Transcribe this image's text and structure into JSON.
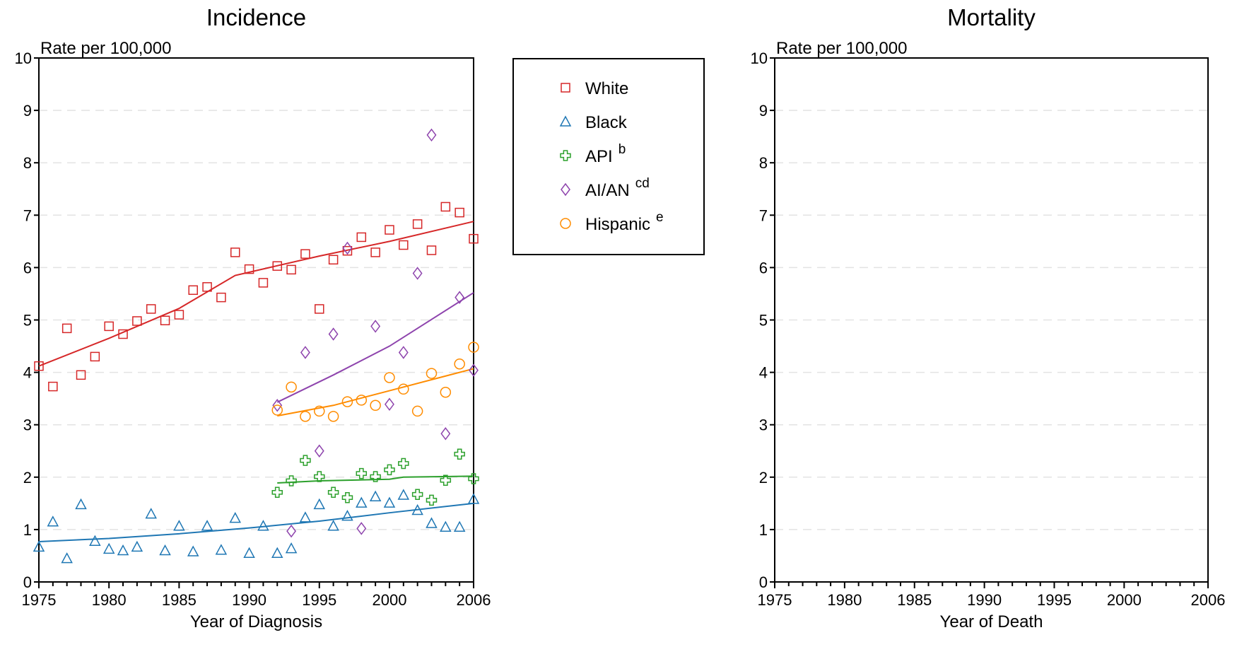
{
  "chart_data": [
    {
      "type": "scatter",
      "title": "Incidence",
      "ylabel": "Rate per 100,000",
      "xlabel": "Year of Diagnosis",
      "xlim": [
        1975,
        2006
      ],
      "ylim": [
        0,
        10
      ],
      "x_ticks": [
        1975,
        1980,
        1985,
        1990,
        1995,
        2000,
        2006
      ],
      "y_ticks": [
        0,
        1,
        2,
        3,
        4,
        5,
        6,
        7,
        8,
        9,
        10
      ],
      "grid": "horizontal dashed",
      "legend_position": "right",
      "series": [
        {
          "name": "White",
          "sup": "",
          "marker": "square",
          "color": "#d62728",
          "points": [
            [
              1975,
              4.12
            ],
            [
              1976,
              3.73
            ],
            [
              1977,
              4.84
            ],
            [
              1978,
              3.95
            ],
            [
              1979,
              4.3
            ],
            [
              1980,
              4.88
            ],
            [
              1981,
              4.73
            ],
            [
              1982,
              4.98
            ],
            [
              1983,
              5.21
            ],
            [
              1984,
              4.99
            ],
            [
              1985,
              5.1
            ],
            [
              1986,
              5.57
            ],
            [
              1987,
              5.63
            ],
            [
              1988,
              5.43
            ],
            [
              1989,
              6.29
            ],
            [
              1990,
              5.97
            ],
            [
              1991,
              5.71
            ],
            [
              1992,
              6.03
            ],
            [
              1993,
              5.96
            ],
            [
              1994,
              6.26
            ],
            [
              1995,
              5.21
            ],
            [
              1996,
              6.15
            ],
            [
              1997,
              6.32
            ],
            [
              1998,
              6.58
            ],
            [
              1999,
              6.29
            ],
            [
              2000,
              6.72
            ],
            [
              2001,
              6.43
            ],
            [
              2002,
              6.83
            ],
            [
              2003,
              6.33
            ],
            [
              2004,
              7.16
            ],
            [
              2005,
              7.05
            ],
            [
              2006,
              6.55
            ]
          ],
          "trend": [
            [
              1975,
              4.12
            ],
            [
              1980,
              4.65
            ],
            [
              1985,
              5.22
            ],
            [
              1989,
              5.85
            ],
            [
              1995,
              6.22
            ],
            [
              2000,
              6.5
            ],
            [
              2006,
              6.88
            ]
          ]
        },
        {
          "name": "Black",
          "sup": "",
          "marker": "triangle",
          "color": "#1f77b4",
          "points": [
            [
              1975,
              0.67
            ],
            [
              1976,
              1.15
            ],
            [
              1977,
              0.45
            ],
            [
              1978,
              1.48
            ],
            [
              1979,
              0.78
            ],
            [
              1980,
              0.63
            ],
            [
              1981,
              0.6
            ],
            [
              1982,
              0.67
            ],
            [
              1983,
              1.3
            ],
            [
              1984,
              0.6
            ],
            [
              1985,
              1.07
            ],
            [
              1986,
              0.58
            ],
            [
              1987,
              1.07
            ],
            [
              1988,
              0.61
            ],
            [
              1989,
              1.22
            ],
            [
              1990,
              0.55
            ],
            [
              1991,
              1.07
            ],
            [
              1992,
              0.55
            ],
            [
              1993,
              0.64
            ],
            [
              1994,
              1.23
            ],
            [
              1995,
              1.48
            ],
            [
              1996,
              1.07
            ],
            [
              1997,
              1.26
            ],
            [
              1998,
              1.51
            ],
            [
              1999,
              1.63
            ],
            [
              2000,
              1.51
            ],
            [
              2001,
              1.66
            ],
            [
              2002,
              1.37
            ],
            [
              2003,
              1.12
            ],
            [
              2004,
              1.05
            ],
            [
              2005,
              1.05
            ],
            [
              2006,
              1.58
            ]
          ],
          "trend": [
            [
              1975,
              0.77
            ],
            [
              1980,
              0.83
            ],
            [
              1985,
              0.92
            ],
            [
              1990,
              1.03
            ],
            [
              1995,
              1.16
            ],
            [
              2000,
              1.32
            ],
            [
              2006,
              1.5
            ]
          ]
        },
        {
          "name": "API",
          "sup": "b",
          "marker": "cross",
          "color": "#2ca02c",
          "points": [
            [
              1992,
              1.71
            ],
            [
              1993,
              1.93
            ],
            [
              1994,
              2.32
            ],
            [
              1995,
              2.01
            ],
            [
              1996,
              1.71
            ],
            [
              1997,
              1.61
            ],
            [
              1998,
              2.07
            ],
            [
              1999,
              2.01
            ],
            [
              2000,
              2.14
            ],
            [
              2001,
              2.26
            ],
            [
              2002,
              1.67
            ],
            [
              2003,
              1.56
            ],
            [
              2004,
              1.94
            ],
            [
              2005,
              2.44
            ],
            [
              2006,
              1.97
            ]
          ],
          "trend": [
            [
              1992,
              1.89
            ],
            [
              1995,
              1.93
            ],
            [
              2000,
              1.96
            ],
            [
              2001,
              2.0
            ],
            [
              2006,
              2.02
            ]
          ]
        },
        {
          "name": "AI/AN",
          "sup": "cd",
          "marker": "diamond",
          "color": "#8e44ad",
          "points": [
            [
              1992,
              3.37
            ],
            [
              1993,
              0.97
            ],
            [
              1994,
              4.38
            ],
            [
              1995,
              2.5
            ],
            [
              1996,
              4.73
            ],
            [
              1997,
              6.37
            ],
            [
              1998,
              1.02
            ],
            [
              1999,
              4.88
            ],
            [
              2000,
              3.39
            ],
            [
              2001,
              4.38
            ],
            [
              2002,
              5.89
            ],
            [
              2003,
              8.53
            ],
            [
              2004,
              2.83
            ],
            [
              2005,
              5.43
            ],
            [
              2006,
              4.04
            ]
          ],
          "trend": [
            [
              1992,
              3.43
            ],
            [
              1996,
              3.95
            ],
            [
              2000,
              4.5
            ],
            [
              2006,
              5.52
            ]
          ]
        },
        {
          "name": "Hispanic",
          "sup": "e",
          "marker": "circle",
          "color": "#ff8c00",
          "points": [
            [
              1992,
              3.28
            ],
            [
              1993,
              3.72
            ],
            [
              1994,
              3.16
            ],
            [
              1995,
              3.26
            ],
            [
              1996,
              3.16
            ],
            [
              1997,
              3.44
            ],
            [
              1998,
              3.47
            ],
            [
              1999,
              3.37
            ],
            [
              2000,
              3.9
            ],
            [
              2001,
              3.68
            ],
            [
              2002,
              3.26
            ],
            [
              2003,
              3.98
            ],
            [
              2004,
              3.62
            ],
            [
              2005,
              4.16
            ],
            [
              2006,
              4.48
            ]
          ],
          "trend": [
            [
              1992,
              3.17
            ],
            [
              1996,
              3.37
            ],
            [
              2000,
              3.65
            ],
            [
              2006,
              4.07
            ]
          ]
        }
      ]
    },
    {
      "type": "scatter",
      "title": "Mortality",
      "ylabel": "Rate per 100,000",
      "xlabel": "Year of Death",
      "xlim": [
        1975,
        2006
      ],
      "ylim": [
        0,
        10
      ],
      "x_ticks": [
        1975,
        1980,
        1985,
        1990,
        1995,
        2000,
        2006
      ],
      "y_ticks": [
        0,
        1,
        2,
        3,
        4,
        5,
        6,
        7,
        8,
        9,
        10
      ],
      "grid": "horizontal dashed",
      "series": []
    }
  ]
}
